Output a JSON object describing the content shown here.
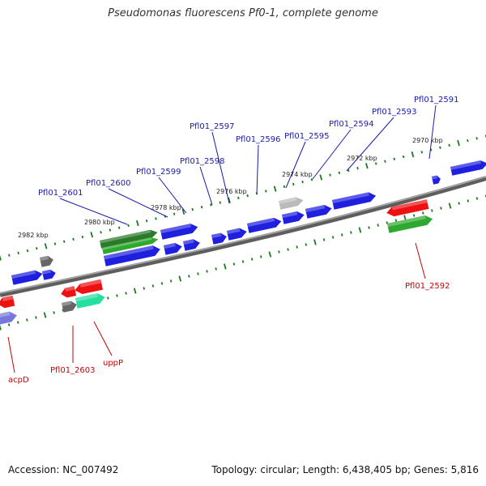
{
  "title": "Pseudomonas fluorescens Pf0-1, complete genome",
  "accession_text": "Accession: NC_007492",
  "stats_text": "Topology: circular; Length: 6,438,405 bp; Genes: 5,816",
  "colors": {
    "backbone": "#7f7f7f",
    "tick": "#1a7a1a",
    "label_blue": "#1a1aaa",
    "label_red": "#cc0000",
    "gene_blue": "#1f1fe0",
    "gene_red": "#ee1111",
    "gene_green": "#2ea82e",
    "gene_darkgreen": "#2b7a2b",
    "gene_teal": "#22e0a0",
    "gene_gray": "#666666",
    "gene_lightgray": "#bbbbbb",
    "gene_lavender": "#7777dd"
  },
  "kbp_labels": [
    "2970 kbp",
    "2972 kbp",
    "2974 kbp",
    "2976 kbp",
    "2978 kbp",
    "2980 kbp",
    "2982 kbp"
  ],
  "gene_labels": [
    {
      "text": "Pfl01_2591",
      "color": "blue"
    },
    {
      "text": "Pfl01_2593",
      "color": "blue"
    },
    {
      "text": "Pfl01_2594",
      "color": "blue"
    },
    {
      "text": "Pfl01_2595",
      "color": "blue"
    },
    {
      "text": "Pfl01_2596",
      "color": "blue"
    },
    {
      "text": "Pfl01_2597",
      "color": "blue"
    },
    {
      "text": "Pfl01_2598",
      "color": "blue"
    },
    {
      "text": "Pfl01_2599",
      "color": "blue"
    },
    {
      "text": "Pfl01_2600",
      "color": "blue"
    },
    {
      "text": "Pfl01_2601",
      "color": "blue"
    },
    {
      "text": "Pfl01_2592",
      "color": "red"
    },
    {
      "text": "Pfl01_2603",
      "color": "red"
    },
    {
      "text": "uppP",
      "color": "red"
    },
    {
      "text": "acpD",
      "color": "red"
    }
  ]
}
